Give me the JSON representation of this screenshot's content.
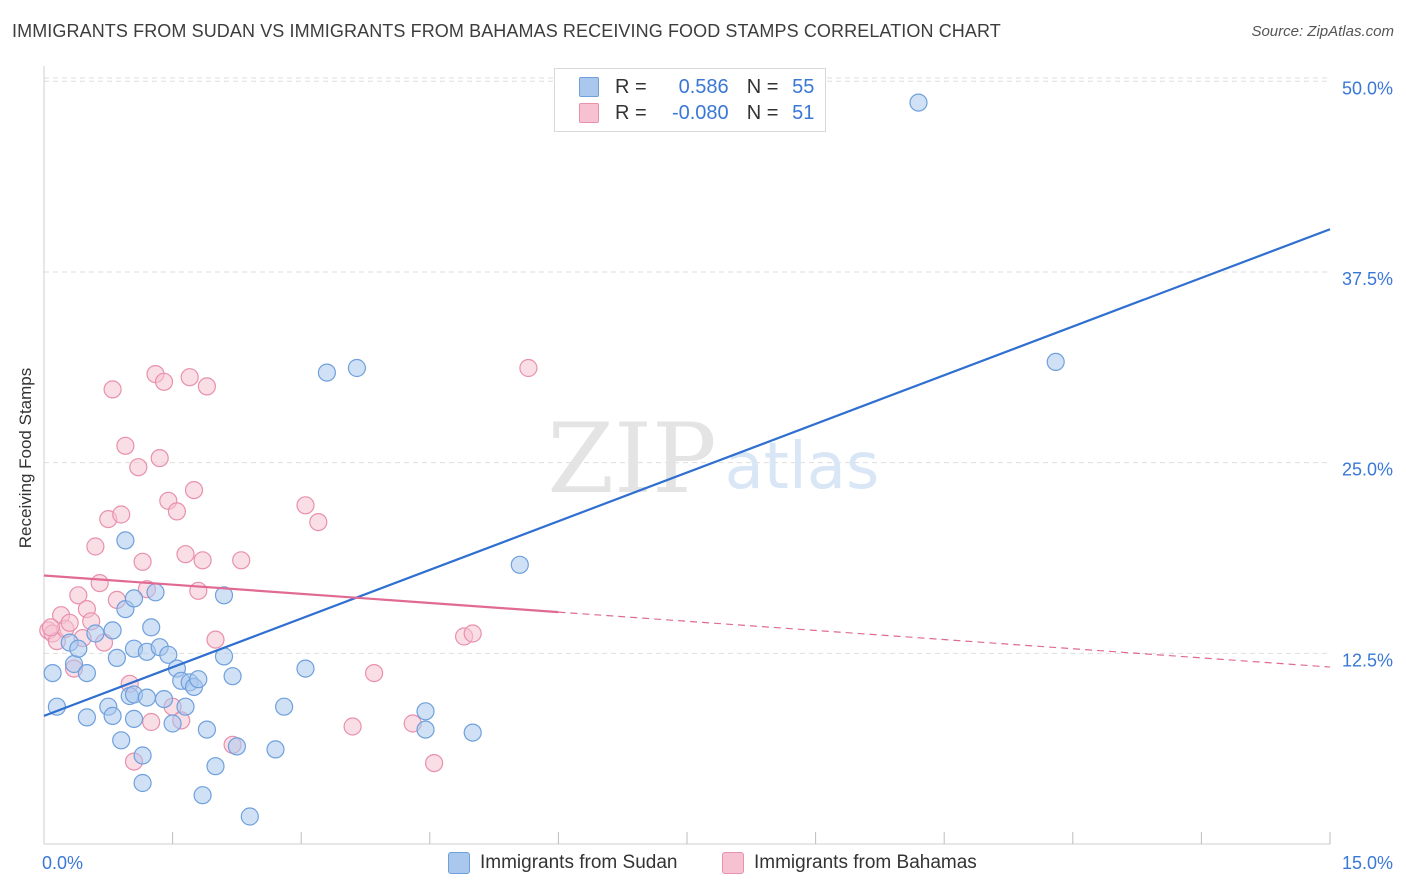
{
  "header": {
    "title": "IMMIGRANTS FROM SUDAN VS IMMIGRANTS FROM BAHAMAS RECEIVING FOOD STAMPS CORRELATION CHART",
    "source": "Source: ZipAtlas.com"
  },
  "legend": {
    "r_label": "R =",
    "n_label": "N =",
    "sudan": {
      "r": "0.586",
      "n": "55"
    },
    "bahamas": {
      "r": "-0.080",
      "n": "51"
    }
  },
  "watermark": {
    "zip": "ZIP",
    "atlas": "atlas"
  },
  "colors": {
    "sudan_fill": "#aac8ee",
    "sudan_stroke": "#6fa0dc",
    "sudan_line": "#2f6fd0",
    "bahamas_fill": "#f6c2d2",
    "bahamas_stroke": "#e890ad",
    "bahamas_line": "#e06a93",
    "tick_text": "#3a78d6",
    "grid": "#dedede"
  },
  "chart_data": {
    "type": "scatter",
    "title": "IMMIGRANTS FROM SUDAN VS IMMIGRANTS FROM BAHAMAS RECEIVING FOOD STAMPS CORRELATION CHART",
    "xlabel": "",
    "ylabel": "Receiving Food Stamps",
    "xlim": [
      0,
      15
    ],
    "ylim": [
      0,
      50
    ],
    "x_tick_labels": [
      {
        "value": 0,
        "label": "0.0%"
      },
      {
        "value": 15,
        "label": "15.0%"
      }
    ],
    "x_minor_ticks": [
      1.5,
      3.0,
      4.5,
      6.0,
      7.5,
      9.0,
      10.5,
      12.0,
      13.5,
      15.0
    ],
    "y_ticks": [
      {
        "value": 12.5,
        "label": "12.5%"
      },
      {
        "value": 25.0,
        "label": "25.0%"
      },
      {
        "value": 37.5,
        "label": "37.5%"
      },
      {
        "value": 50.0,
        "label": "50.0%"
      }
    ],
    "grid": true,
    "legend_position": "bottom",
    "series": [
      {
        "name": "Immigrants from Sudan",
        "points": [
          [
            0.1,
            11.2
          ],
          [
            0.15,
            9.0
          ],
          [
            0.3,
            13.2
          ],
          [
            0.35,
            11.8
          ],
          [
            0.4,
            12.8
          ],
          [
            0.5,
            11.2
          ],
          [
            0.5,
            8.3
          ],
          [
            0.6,
            13.8
          ],
          [
            0.75,
            9.0
          ],
          [
            0.8,
            8.4
          ],
          [
            0.85,
            12.2
          ],
          [
            0.8,
            14.0
          ],
          [
            0.9,
            6.8
          ],
          [
            0.95,
            19.9
          ],
          [
            0.95,
            15.4
          ],
          [
            1.0,
            9.7
          ],
          [
            1.05,
            16.1
          ],
          [
            1.05,
            12.8
          ],
          [
            1.05,
            9.8
          ],
          [
            1.05,
            8.2
          ],
          [
            1.15,
            5.8
          ],
          [
            1.15,
            4.0
          ],
          [
            1.2,
            9.6
          ],
          [
            1.2,
            12.6
          ],
          [
            1.25,
            14.2
          ],
          [
            1.3,
            16.5
          ],
          [
            1.35,
            12.9
          ],
          [
            1.4,
            9.5
          ],
          [
            1.45,
            12.4
          ],
          [
            1.5,
            7.9
          ],
          [
            1.55,
            11.5
          ],
          [
            1.6,
            10.7
          ],
          [
            1.65,
            9.0
          ],
          [
            1.7,
            10.6
          ],
          [
            1.75,
            10.3
          ],
          [
            1.8,
            10.8
          ],
          [
            1.85,
            3.2
          ],
          [
            1.9,
            7.5
          ],
          [
            2.0,
            5.1
          ],
          [
            2.1,
            12.3
          ],
          [
            2.1,
            16.3
          ],
          [
            2.2,
            11.0
          ],
          [
            2.25,
            6.4
          ],
          [
            2.4,
            1.8
          ],
          [
            2.7,
            6.2
          ],
          [
            2.8,
            9.0
          ],
          [
            3.05,
            11.5
          ],
          [
            3.3,
            30.9
          ],
          [
            3.65,
            31.2
          ],
          [
            4.45,
            8.7
          ],
          [
            4.45,
            7.5
          ],
          [
            5.0,
            7.3
          ],
          [
            5.55,
            18.3
          ],
          [
            10.2,
            48.6
          ],
          [
            11.8,
            31.6
          ]
        ]
      },
      {
        "name": "Immigrants from Bahamas",
        "points": [
          [
            0.05,
            14.0
          ],
          [
            0.1,
            13.8
          ],
          [
            0.15,
            13.3
          ],
          [
            0.2,
            15.0
          ],
          [
            0.25,
            14.1
          ],
          [
            0.3,
            14.5
          ],
          [
            0.35,
            11.5
          ],
          [
            0.4,
            16.3
          ],
          [
            0.45,
            13.5
          ],
          [
            0.5,
            15.4
          ],
          [
            0.55,
            14.6
          ],
          [
            0.6,
            19.5
          ],
          [
            0.65,
            17.1
          ],
          [
            0.7,
            13.2
          ],
          [
            0.75,
            21.3
          ],
          [
            0.8,
            29.8
          ],
          [
            0.85,
            16.0
          ],
          [
            0.9,
            21.6
          ],
          [
            0.95,
            26.1
          ],
          [
            1.0,
            10.5
          ],
          [
            1.05,
            5.4
          ],
          [
            1.1,
            24.7
          ],
          [
            1.15,
            18.5
          ],
          [
            1.2,
            16.7
          ],
          [
            1.25,
            8.0
          ],
          [
            1.3,
            30.8
          ],
          [
            1.35,
            25.3
          ],
          [
            1.4,
            30.3
          ],
          [
            1.45,
            22.5
          ],
          [
            1.5,
            9.0
          ],
          [
            1.55,
            21.8
          ],
          [
            1.6,
            8.1
          ],
          [
            1.65,
            19.0
          ],
          [
            1.7,
            30.6
          ],
          [
            1.75,
            23.2
          ],
          [
            1.8,
            16.6
          ],
          [
            1.85,
            18.6
          ],
          [
            1.9,
            30.0
          ],
          [
            2.0,
            13.4
          ],
          [
            2.2,
            6.5
          ],
          [
            2.3,
            18.6
          ],
          [
            3.05,
            22.2
          ],
          [
            3.2,
            21.1
          ],
          [
            3.6,
            7.7
          ],
          [
            3.85,
            11.2
          ],
          [
            4.3,
            7.9
          ],
          [
            4.55,
            5.3
          ],
          [
            4.9,
            13.6
          ],
          [
            5.0,
            13.8
          ],
          [
            5.65,
            31.2
          ],
          [
            0.08,
            14.2
          ]
        ]
      }
    ],
    "trend_lines": [
      {
        "series": "Immigrants from Sudan",
        "from": [
          0.0,
          8.4
        ],
        "to": [
          15.0,
          40.3
        ],
        "style": "solid"
      },
      {
        "series": "Immigrants from Bahamas",
        "from": [
          0.0,
          17.6
        ],
        "to": [
          6.0,
          15.2
        ],
        "style": "solid"
      },
      {
        "series": "Immigrants from Bahamas",
        "from": [
          6.0,
          15.2
        ],
        "to": [
          15.0,
          11.6
        ],
        "style": "dashed"
      }
    ]
  }
}
